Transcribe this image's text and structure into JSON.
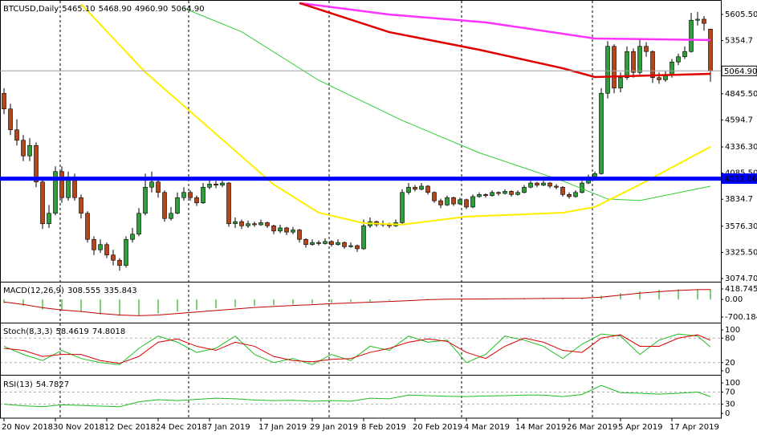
{
  "chart_data": [
    {
      "type": "candlestick",
      "title": "BTCUSD,Daily",
      "readout": [
        "5465.10",
        "5468.90",
        "4960.90",
        "5064.90"
      ],
      "categories": [
        "20 Nov 2018",
        null,
        null,
        null,
        null,
        null,
        null,
        null,
        "30 Nov 2018",
        null,
        null,
        null,
        null,
        null,
        null,
        null,
        "12 Dec 2018",
        null,
        null,
        null,
        null,
        null,
        null,
        null,
        "24 Dec 2018",
        null,
        null,
        null,
        null,
        null,
        null,
        null,
        "7 Jan 2019",
        null,
        null,
        null,
        null,
        null,
        null,
        null,
        "17 Jan 2019",
        null,
        null,
        null,
        null,
        null,
        null,
        null,
        "29 Jan 2019",
        null,
        null,
        null,
        null,
        null,
        null,
        null,
        "8 Feb 2019",
        null,
        null,
        null,
        null,
        null,
        null,
        null,
        "20 Feb 2019",
        null,
        null,
        null,
        null,
        null,
        null,
        null,
        "4 Mar 2019",
        null,
        null,
        null,
        null,
        null,
        null,
        null,
        "14 Mar 2019",
        null,
        null,
        null,
        null,
        null,
        null,
        null,
        "26 Mar 2019",
        null,
        null,
        null,
        null,
        null,
        null,
        null,
        "5 Apr 2019",
        null,
        null,
        null,
        null,
        null,
        null,
        null,
        "17 Apr 2019",
        null,
        null,
        null,
        null,
        null,
        null
      ],
      "candles": [
        [
          4850,
          4900,
          4650,
          4700
        ],
        [
          4700,
          4750,
          4450,
          4500
        ],
        [
          4500,
          4600,
          4350,
          4400
        ],
        [
          4400,
          4450,
          4200,
          4250
        ],
        [
          4250,
          4420,
          4200,
          4350
        ],
        [
          4350,
          4380,
          3950,
          4000
        ],
        [
          4000,
          4050,
          3550,
          3600
        ],
        [
          3600,
          3780,
          3560,
          3700
        ],
        [
          3700,
          4150,
          3680,
          4100
        ],
        [
          4100,
          4150,
          3800,
          3850
        ],
        [
          3850,
          4100,
          3820,
          4050
        ],
        [
          4050,
          4080,
          3820,
          3850
        ],
        [
          3850,
          3880,
          3650,
          3700
        ],
        [
          3700,
          3720,
          3420,
          3450
        ],
        [
          3450,
          3480,
          3300,
          3350
        ],
        [
          3350,
          3450,
          3320,
          3400
        ],
        [
          3400,
          3420,
          3270,
          3300
        ],
        [
          3300,
          3350,
          3200,
          3250
        ],
        [
          3250,
          3270,
          3150,
          3200
        ],
        [
          3200,
          3480,
          3180,
          3450
        ],
        [
          3450,
          3560,
          3420,
          3500
        ],
        [
          3500,
          3750,
          3480,
          3700
        ],
        [
          3700,
          4080,
          3680,
          3950
        ],
        [
          3950,
          4100,
          3900,
          4000
        ],
        [
          4000,
          4020,
          3850,
          3900
        ],
        [
          3900,
          3920,
          3620,
          3650
        ],
        [
          3650,
          3760,
          3630,
          3700
        ],
        [
          3700,
          3900,
          3690,
          3850
        ],
        [
          3850,
          3950,
          3820,
          3900
        ],
        [
          3900,
          3920,
          3820,
          3850
        ],
        [
          3850,
          3870,
          3770,
          3800
        ],
        [
          3800,
          3990,
          3790,
          3950
        ],
        [
          3950,
          4030,
          3930,
          3980
        ],
        [
          3980,
          4010,
          3940,
          3970
        ],
        [
          3970,
          4010,
          3950,
          3990
        ],
        [
          3990,
          4000,
          3570,
          3600
        ],
        [
          3600,
          3660,
          3560,
          3620
        ],
        [
          3620,
          3640,
          3550,
          3580
        ],
        [
          3580,
          3630,
          3560,
          3600
        ],
        [
          3600,
          3620,
          3570,
          3590
        ],
        [
          3590,
          3640,
          3580,
          3610
        ],
        [
          3610,
          3620,
          3560,
          3580
        ],
        [
          3580,
          3590,
          3500,
          3530
        ],
        [
          3530,
          3590,
          3510,
          3560
        ],
        [
          3560,
          3570,
          3490,
          3520
        ],
        [
          3520,
          3570,
          3500,
          3540
        ],
        [
          3540,
          3550,
          3420,
          3450
        ],
        [
          3450,
          3460,
          3370,
          3400
        ],
        [
          3400,
          3450,
          3390,
          3420
        ],
        [
          3420,
          3440,
          3390,
          3410
        ],
        [
          3410,
          3460,
          3400,
          3430
        ],
        [
          3430,
          3440,
          3380,
          3400
        ],
        [
          3400,
          3450,
          3390,
          3420
        ],
        [
          3420,
          3430,
          3360,
          3380
        ],
        [
          3380,
          3420,
          3370,
          3390
        ],
        [
          3390,
          3400,
          3330,
          3360
        ],
        [
          3360,
          3640,
          3350,
          3580
        ],
        [
          3580,
          3660,
          3560,
          3620
        ],
        [
          3620,
          3630,
          3570,
          3590
        ],
        [
          3590,
          3630,
          3570,
          3600
        ],
        [
          3600,
          3610,
          3560,
          3580
        ],
        [
          3580,
          3640,
          3570,
          3610
        ],
        [
          3610,
          3930,
          3600,
          3900
        ],
        [
          3900,
          3990,
          3880,
          3950
        ],
        [
          3950,
          3970,
          3910,
          3930
        ],
        [
          3930,
          3990,
          3920,
          3960
        ],
        [
          3960,
          3970,
          3880,
          3900
        ],
        [
          3900,
          3910,
          3800,
          3820
        ],
        [
          3820,
          3840,
          3750,
          3780
        ],
        [
          3780,
          3870,
          3770,
          3850
        ],
        [
          3850,
          3860,
          3770,
          3790
        ],
        [
          3790,
          3850,
          3780,
          3830
        ],
        [
          3830,
          3840,
          3740,
          3760
        ],
        [
          3760,
          3880,
          3750,
          3860
        ],
        [
          3860,
          3900,
          3850,
          3880
        ],
        [
          3880,
          3890,
          3850,
          3870
        ],
        [
          3870,
          3920,
          3860,
          3900
        ],
        [
          3900,
          3910,
          3870,
          3890
        ],
        [
          3890,
          3930,
          3880,
          3910
        ],
        [
          3910,
          3920,
          3860,
          3880
        ],
        [
          3880,
          3920,
          3870,
          3900
        ],
        [
          3900,
          3970,
          3890,
          3950
        ],
        [
          3950,
          4010,
          3940,
          3990
        ],
        [
          3990,
          4000,
          3950,
          3970
        ],
        [
          3970,
          4010,
          3960,
          3990
        ],
        [
          3990,
          4000,
          3940,
          3960
        ],
        [
          3960,
          3980,
          3930,
          3950
        ],
        [
          3950,
          3960,
          3860,
          3880
        ],
        [
          3880,
          3900,
          3840,
          3860
        ],
        [
          3860,
          3920,
          3850,
          3900
        ],
        [
          3900,
          4010,
          3890,
          3990
        ],
        [
          3990,
          4070,
          3980,
          4050
        ],
        [
          4050,
          4100,
          4030,
          4080
        ],
        [
          4080,
          4900,
          4070,
          4850
        ],
        [
          4850,
          5350,
          4800,
          5300
        ],
        [
          5300,
          5320,
          4850,
          4900
        ],
        [
          4900,
          5050,
          4860,
          5000
        ],
        [
          5000,
          5300,
          4980,
          5250
        ],
        [
          5250,
          5280,
          5000,
          5050
        ],
        [
          5050,
          5380,
          5030,
          5300
        ],
        [
          5300,
          5340,
          5200,
          5250
        ],
        [
          5250,
          5260,
          4950,
          5000
        ],
        [
          5000,
          5050,
          4940,
          4980
        ],
        [
          4980,
          5060,
          4960,
          5020
        ],
        [
          5020,
          5180,
          5000,
          5150
        ],
        [
          5150,
          5230,
          5120,
          5200
        ],
        [
          5200,
          5300,
          5180,
          5250
        ],
        [
          5250,
          5620,
          5240,
          5550
        ],
        [
          5550,
          5630,
          5500,
          5560
        ],
        [
          5560,
          5590,
          5450,
          5520
        ],
        [
          5465.1,
          5468.9,
          4960.9,
          5064.9
        ]
      ],
      "bull_color": "#2e9e3a",
      "bear_color": "#b5451b",
      "ylim": [
        3052,
        5721
      ],
      "yticks": [
        {
          "value": 5605.5,
          "label": "5605.50"
        },
        5354.7,
        {
          "value": 4845.5,
          "label": "4845.50"
        },
        4594.7,
        {
          "value": 4336.3,
          "label": "4336.30"
        },
        {
          "value": 4085.5,
          "label": "4085.50"
        },
        3834.7,
        {
          "value": 3576.3,
          "label": "3576.30"
        },
        {
          "value": 3325.5,
          "label": "3325.50"
        },
        {
          "value": 3074.7,
          "label": "3074.70"
        }
      ],
      "overlays": [
        {
          "color": "#ff33ff",
          "x": [
            46,
            60,
            75,
            92,
            110
          ],
          "values": [
            5715,
            5605,
            5530,
            5375,
            5360
          ]
        },
        {
          "color": "#e00000",
          "x": [
            46,
            60,
            74,
            87,
            92,
            110
          ],
          "values": [
            5715,
            5436,
            5267,
            5090,
            5006,
            5036
          ]
        },
        {
          "color": "#33cc33",
          "x": [
            28,
            37,
            49,
            62,
            74,
            87,
            94,
            99,
            110
          ],
          "values": [
            5665,
            5440,
            4975,
            4590,
            4280,
            4010,
            3837,
            3822,
            3960
          ]
        },
        {
          "color": "#ffee00",
          "x": [
            12,
            22,
            32,
            42,
            49,
            56,
            62,
            72,
            87,
            92,
            99,
            110
          ],
          "values": [
            5705,
            5052,
            4514,
            3975,
            3706,
            3606,
            3591,
            3668,
            3706,
            3760,
            3975,
            4337
          ]
        }
      ],
      "levels": [
        {
          "value": 4032.06,
          "color": "#0000ff"
        },
        {
          "value": 5064.9,
          "label": "5064.90",
          "color": "#a0a0a0"
        }
      ]
    },
    {
      "type": "macd",
      "title": "MACD(12,26,9)",
      "readout": [
        308.555,
        335.843
      ],
      "x": [
        0,
        3,
        6,
        9,
        12,
        15,
        18,
        21,
        24,
        27,
        30,
        33,
        36,
        39,
        42,
        45,
        48,
        51,
        54,
        57,
        60,
        63,
        66,
        69,
        72,
        75,
        78,
        81,
        84,
        87,
        90,
        93,
        96,
        99,
        102,
        105,
        108,
        110
      ],
      "ylim": [
        -860,
        610
      ],
      "yticks": [
        418.745,
        {
          "value": 0,
          "label": "0.00"
        },
        -700.184
      ],
      "series": [
        {
          "color": "#7fcf7f",
          "values": [
            -150,
            -250,
            -400,
            -450,
            -500,
            -600,
            -650,
            -640,
            -560,
            -480,
            -420,
            -350,
            -300,
            -260,
            -230,
            -200,
            -170,
            -130,
            -100,
            -80,
            -40,
            0,
            20,
            20,
            20,
            30,
            30,
            40,
            50,
            50,
            60,
            150,
            250,
            330,
            380,
            400,
            410,
            400
          ]
        },
        {
          "color": "#c00000",
          "values": [
            -100,
            -200,
            -330,
            -420,
            -480,
            -560,
            -620,
            -650,
            -620,
            -560,
            -500,
            -440,
            -380,
            -320,
            -280,
            -240,
            -210,
            -170,
            -140,
            -110,
            -80,
            -50,
            -10,
            10,
            15,
            20,
            25,
            30,
            40,
            45,
            50,
            90,
            170,
            250,
            310,
            360,
            390,
            395
          ]
        }
      ]
    },
    {
      "type": "line",
      "title": "Stoch(8,3,3)",
      "readout": [
        58.4619,
        74.8018
      ],
      "x": [
        0,
        3,
        6,
        9,
        12,
        15,
        18,
        21,
        24,
        27,
        30,
        33,
        36,
        39,
        42,
        45,
        48,
        51,
        54,
        57,
        60,
        63,
        66,
        69,
        72,
        75,
        78,
        81,
        84,
        87,
        90,
        93,
        96,
        99,
        102,
        105,
        108,
        110
      ],
      "ylim": [
        -6,
        112
      ],
      "yticks": [
        100,
        80,
        20,
        0
      ],
      "levels": [
        80,
        20
      ],
      "series": [
        {
          "color": "#22bb22",
          "values": [
            60,
            40,
            25,
            50,
            30,
            20,
            15,
            55,
            85,
            70,
            45,
            55,
            85,
            40,
            20,
            30,
            15,
            40,
            25,
            60,
            50,
            85,
            70,
            75,
            20,
            40,
            85,
            75,
            60,
            30,
            65,
            90,
            85,
            40,
            75,
            90,
            85,
            58.4619
          ]
        },
        {
          "color": "#dd0000",
          "values": [
            55,
            50,
            35,
            40,
            40,
            25,
            18,
            35,
            70,
            78,
            60,
            50,
            70,
            60,
            35,
            25,
            22,
            28,
            30,
            45,
            55,
            70,
            78,
            72,
            45,
            30,
            60,
            80,
            70,
            50,
            45,
            80,
            88,
            60,
            60,
            80,
            88,
            74.8018
          ]
        }
      ]
    },
    {
      "type": "line",
      "title": "RSI(13)",
      "readout": [
        54.7827
      ],
      "x": [
        0,
        3,
        6,
        9,
        12,
        15,
        18,
        21,
        24,
        27,
        30,
        33,
        36,
        39,
        42,
        45,
        48,
        51,
        54,
        57,
        60,
        63,
        66,
        69,
        72,
        75,
        78,
        81,
        84,
        87,
        90,
        93,
        96,
        99,
        102,
        105,
        108,
        110
      ],
      "ylim": [
        -13,
        116
      ],
      "yticks": [
        100,
        70,
        30,
        0
      ],
      "levels": [
        70,
        30
      ],
      "series": [
        {
          "color": "#22bb22",
          "values": [
            30,
            25,
            22,
            28,
            26,
            24,
            22,
            38,
            45,
            42,
            46,
            50,
            48,
            44,
            42,
            43,
            40,
            42,
            40,
            50,
            48,
            60,
            58,
            56,
            55,
            57,
            58,
            60,
            60,
            55,
            62,
            92,
            68,
            66,
            63,
            66,
            70,
            54.7827
          ]
        }
      ]
    }
  ]
}
